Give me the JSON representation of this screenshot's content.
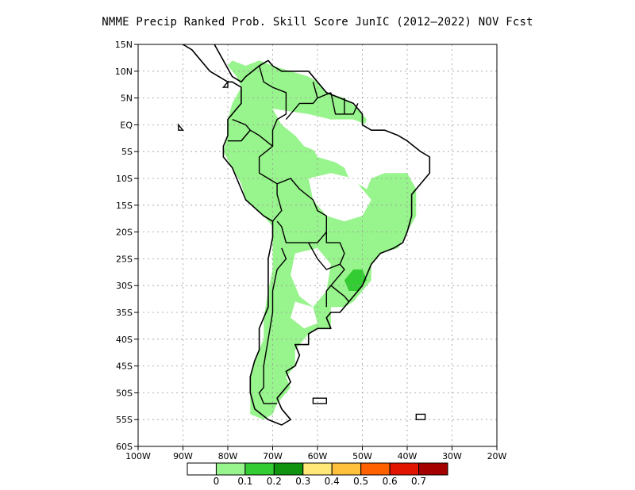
{
  "title": "NMME Precip Ranked Prob. Skill Score JunIC (2012–2022) NOV Fcst",
  "map": {
    "lon_range": [
      -100,
      -20
    ],
    "lat_range": [
      -60,
      15
    ],
    "lat_ticks": [
      {
        "value": 15,
        "label": "15N"
      },
      {
        "value": 10,
        "label": "10N"
      },
      {
        "value": 5,
        "label": "5N"
      },
      {
        "value": 0,
        "label": "EQ"
      },
      {
        "value": -5,
        "label": "5S"
      },
      {
        "value": -10,
        "label": "10S"
      },
      {
        "value": -15,
        "label": "15S"
      },
      {
        "value": -20,
        "label": "20S"
      },
      {
        "value": -25,
        "label": "25S"
      },
      {
        "value": -30,
        "label": "30S"
      },
      {
        "value": -35,
        "label": "35S"
      },
      {
        "value": -40,
        "label": "40S"
      },
      {
        "value": -45,
        "label": "45S"
      },
      {
        "value": -50,
        "label": "50S"
      },
      {
        "value": -55,
        "label": "55S"
      },
      {
        "value": -60,
        "label": "60S"
      }
    ],
    "lon_ticks": [
      {
        "value": -100,
        "label": "100W"
      },
      {
        "value": -90,
        "label": "90W"
      },
      {
        "value": -80,
        "label": "80W"
      },
      {
        "value": -70,
        "label": "70W"
      },
      {
        "value": -60,
        "label": "60W"
      },
      {
        "value": -50,
        "label": "50W"
      },
      {
        "value": -40,
        "label": "40W"
      },
      {
        "value": -30,
        "label": "30W"
      },
      {
        "value": -20,
        "label": "20W"
      }
    ],
    "grid": true,
    "land_outline_color": "#000000",
    "skill_regions": [
      {
        "level": "0.1-0.2",
        "color": "#98f48c",
        "coords": [
          [
            -79,
            12
          ],
          [
            -76,
            11
          ],
          [
            -73,
            12
          ],
          [
            -70,
            11
          ],
          [
            -66,
            10
          ],
          [
            -62,
            9
          ],
          [
            -60,
            8
          ],
          [
            -58,
            6
          ],
          [
            -54,
            5
          ],
          [
            -51,
            3
          ],
          [
            -49,
            1
          ],
          [
            -50,
            -1
          ],
          [
            -56,
            -1
          ],
          [
            -60,
            -2
          ],
          [
            -62,
            -3
          ],
          [
            -60,
            -6
          ],
          [
            -56,
            -7
          ],
          [
            -54,
            -8
          ],
          [
            -53,
            -10
          ],
          [
            -49,
            -12
          ],
          [
            -48,
            -10
          ],
          [
            -45,
            -9
          ],
          [
            -43,
            -9
          ],
          [
            -40,
            -9
          ],
          [
            -38,
            -12
          ],
          [
            -38,
            -17
          ],
          [
            -40,
            -20
          ],
          [
            -42,
            -23
          ],
          [
            -46,
            -24
          ],
          [
            -48,
            -26
          ],
          [
            -48,
            -29
          ],
          [
            -50,
            -31
          ],
          [
            -52,
            -33
          ],
          [
            -54,
            -34
          ],
          [
            -57,
            -34
          ],
          [
            -57,
            -36
          ],
          [
            -57,
            -38
          ],
          [
            -60,
            -38
          ],
          [
            -62,
            -39
          ],
          [
            -64,
            -41
          ],
          [
            -65,
            -42
          ],
          [
            -65,
            -45
          ],
          [
            -67,
            -47
          ],
          [
            -66,
            -49
          ],
          [
            -68,
            -51
          ],
          [
            -69,
            -52
          ],
          [
            -70,
            -54
          ],
          [
            -72,
            -55
          ],
          [
            -75,
            -54
          ],
          [
            -75,
            -50
          ],
          [
            -75,
            -47
          ],
          [
            -74,
            -44
          ],
          [
            -73,
            -42
          ],
          [
            -72,
            -40
          ],
          [
            -72,
            -36
          ],
          [
            -71,
            -31
          ],
          [
            -70,
            -27
          ],
          [
            -70,
            -23
          ],
          [
            -70,
            -19
          ],
          [
            -72,
            -17
          ],
          [
            -76,
            -14
          ],
          [
            -77,
            -11
          ],
          [
            -79,
            -8
          ],
          [
            -81,
            -5
          ],
          [
            -80,
            -2
          ],
          [
            -80,
            1
          ],
          [
            -79,
            4
          ],
          [
            -77,
            7
          ],
          [
            -78,
            9
          ],
          [
            -80,
            11
          ]
        ]
      },
      {
        "level": "0.2-0.3",
        "color": "#33cc33",
        "coords": [
          [
            -52,
            -27
          ],
          [
            -50,
            -27
          ],
          [
            -49,
            -29
          ],
          [
            -51,
            -31
          ],
          [
            -53,
            -31
          ],
          [
            -54,
            -29
          ]
        ]
      }
    ],
    "no_skill_regions": [
      [
        [
          -70,
          3
        ],
        [
          -62,
          2
        ],
        [
          -57,
          1
        ],
        [
          -52,
          1
        ],
        [
          -49,
          0
        ],
        [
          -45,
          -1
        ],
        [
          -42,
          -3
        ],
        [
          -40,
          -4
        ],
        [
          -41,
          -6
        ],
        [
          -45,
          -6
        ],
        [
          -49,
          -7
        ],
        [
          -53,
          -7
        ],
        [
          -57,
          -6
        ],
        [
          -60,
          -5
        ],
        [
          -63,
          -4
        ],
        [
          -65,
          -2
        ],
        [
          -68,
          0
        ]
      ],
      [
        [
          -62,
          -10
        ],
        [
          -57,
          -9
        ],
        [
          -52,
          -10
        ],
        [
          -48,
          -14
        ],
        [
          -50,
          -17
        ],
        [
          -54,
          -18
        ],
        [
          -58,
          -17
        ],
        [
          -61,
          -14
        ]
      ],
      [
        [
          -65,
          -24
        ],
        [
          -60,
          -23
        ],
        [
          -57,
          -26
        ],
        [
          -58,
          -31
        ],
        [
          -61,
          -34
        ],
        [
          -64,
          -32
        ],
        [
          -66,
          -28
        ]
      ],
      [
        [
          -65,
          -33
        ],
        [
          -61,
          -34
        ],
        [
          -60,
          -37
        ],
        [
          -63,
          -38
        ],
        [
          -66,
          -36
        ]
      ]
    ],
    "coastline": [
      [
        -83,
        15
      ],
      [
        -81,
        12
      ],
      [
        -79,
        9
      ],
      [
        -77,
        8
      ],
      [
        -76,
        9
      ],
      [
        -73,
        11
      ],
      [
        -71,
        12
      ],
      [
        -70,
        11
      ],
      [
        -68,
        10
      ],
      [
        -65,
        10
      ],
      [
        -62,
        10
      ],
      [
        -60,
        8
      ],
      [
        -58,
        6
      ],
      [
        -55,
        5
      ],
      [
        -52,
        4
      ],
      [
        -50,
        2
      ],
      [
        -50,
        0
      ],
      [
        -48,
        -1
      ],
      [
        -45,
        -1
      ],
      [
        -42,
        -2
      ],
      [
        -40,
        -3
      ],
      [
        -37,
        -5
      ],
      [
        -35,
        -6
      ],
      [
        -35,
        -9
      ],
      [
        -37,
        -11
      ],
      [
        -39,
        -13
      ],
      [
        -39,
        -17
      ],
      [
        -40,
        -20
      ],
      [
        -41,
        -22
      ],
      [
        -43,
        -23
      ],
      [
        -46,
        -24
      ],
      [
        -48,
        -26
      ],
      [
        -49,
        -28
      ],
      [
        -50,
        -30
      ],
      [
        -51,
        -31
      ],
      [
        -53,
        -33
      ],
      [
        -55,
        -35
      ],
      [
        -57,
        -35
      ],
      [
        -58,
        -36
      ],
      [
        -57,
        -38
      ],
      [
        -60,
        -38
      ],
      [
        -62,
        -39
      ],
      [
        -62,
        -41
      ],
      [
        -65,
        -41
      ],
      [
        -64,
        -43
      ],
      [
        -65,
        -45
      ],
      [
        -67,
        -46
      ],
      [
        -66,
        -48
      ],
      [
        -68,
        -50
      ],
      [
        -69,
        -51
      ],
      [
        -68,
        -53
      ],
      [
        -66,
        -55
      ],
      [
        -68,
        -56
      ],
      [
        -71,
        -55
      ],
      [
        -74,
        -53
      ],
      [
        -75,
        -50
      ],
      [
        -75,
        -47
      ],
      [
        -74,
        -44
      ],
      [
        -73,
        -42
      ],
      [
        -73,
        -38
      ],
      [
        -71,
        -34
      ],
      [
        -71,
        -30
      ],
      [
        -71,
        -25
      ],
      [
        -70,
        -21
      ],
      [
        -70,
        -18
      ],
      [
        -72,
        -17
      ],
      [
        -76,
        -14
      ],
      [
        -77,
        -12
      ],
      [
        -79,
        -8
      ],
      [
        -81,
        -6
      ],
      [
        -81,
        -4
      ],
      [
        -80,
        -2
      ],
      [
        -80,
        1
      ],
      [
        -79,
        2
      ],
      [
        -77,
        4
      ],
      [
        -77,
        7
      ],
      [
        -79,
        8
      ],
      [
        -80,
        8
      ],
      [
        -82,
        9
      ],
      [
        -84,
        10
      ],
      [
        -86,
        12
      ],
      [
        -88,
        14
      ],
      [
        -90,
        15
      ]
    ],
    "borders": [
      [
        [
          -73,
          11
        ],
        [
          -72,
          8
        ],
        [
          -70,
          7
        ],
        [
          -67,
          6
        ],
        [
          -67,
          2
        ],
        [
          -69,
          1
        ],
        [
          -70,
          -1
        ],
        [
          -70,
          -4
        ]
      ],
      [
        [
          -67,
          1
        ],
        [
          -64,
          4
        ],
        [
          -61,
          4
        ],
        [
          -60,
          5
        ],
        [
          -61,
          8
        ]
      ],
      [
        [
          -60,
          5
        ],
        [
          -57,
          6
        ]
      ],
      [
        [
          -57,
          6
        ],
        [
          -56,
          2
        ],
        [
          -54,
          2
        ],
        [
          -54,
          5
        ]
      ],
      [
        [
          -54,
          2
        ],
        [
          -52,
          2
        ],
        [
          -51,
          4
        ]
      ],
      [
        [
          -79,
          1
        ],
        [
          -76,
          0
        ],
        [
          -75,
          -1
        ],
        [
          -77,
          -3
        ]
      ],
      [
        [
          -80,
          -3
        ],
        [
          -77,
          -3
        ],
        [
          -75,
          -1
        ],
        [
          -73,
          -2
        ],
        [
          -70,
          -4
        ],
        [
          -73,
          -6
        ],
        [
          -73,
          -9
        ],
        [
          -71,
          -10
        ],
        [
          -69,
          -11
        ],
        [
          -69,
          -13
        ],
        [
          -68,
          -16
        ],
        [
          -70,
          -18
        ]
      ],
      [
        [
          -69,
          -11
        ],
        [
          -66,
          -10
        ],
        [
          -64,
          -12
        ],
        [
          -61,
          -14
        ],
        [
          -60,
          -16
        ],
        [
          -58,
          -17
        ],
        [
          -58,
          -20
        ],
        [
          -60,
          -22
        ],
        [
          -62,
          -22
        ],
        [
          -64,
          -22
        ],
        [
          -67,
          -22
        ],
        [
          -68,
          -19
        ],
        [
          -69,
          -18
        ]
      ],
      [
        [
          -68,
          -23
        ],
        [
          -67,
          -25
        ],
        [
          -69,
          -27
        ],
        [
          -70,
          -31
        ],
        [
          -70,
          -35
        ],
        [
          -71,
          -40
        ],
        [
          -72,
          -45
        ],
        [
          -72,
          -49
        ],
        [
          -73,
          -50
        ],
        [
          -72,
          -52
        ],
        [
          -69,
          -52
        ]
      ],
      [
        [
          -58,
          -20
        ],
        [
          -58,
          -22
        ],
        [
          -55,
          -22
        ],
        [
          -54,
          -24
        ],
        [
          -55,
          -26
        ],
        [
          -58,
          -27
        ],
        [
          -60,
          -25
        ],
        [
          -62,
          -22
        ]
      ],
      [
        [
          -55,
          -26
        ],
        [
          -54,
          -27
        ],
        [
          -57,
          -30
        ],
        [
          -58,
          -31
        ],
        [
          -58,
          -34
        ]
      ],
      [
        [
          -57,
          -30
        ],
        [
          -54,
          -32
        ],
        [
          -53,
          -33
        ]
      ]
    ],
    "islands": [
      [
        [
          -61,
          -51
        ],
        [
          -58,
          -51
        ],
        [
          -58,
          -52
        ],
        [
          -61,
          -52
        ]
      ],
      [
        [
          -38,
          -54
        ],
        [
          -36,
          -54
        ],
        [
          -36,
          -55
        ],
        [
          -38,
          -55
        ]
      ],
      [
        [
          -91,
          0
        ],
        [
          -90,
          -1
        ],
        [
          -91,
          -1
        ]
      ],
      [
        [
          -81,
          7
        ],
        [
          -80,
          7
        ],
        [
          -80,
          8
        ]
      ]
    ]
  },
  "colorbar": {
    "colors": [
      "#ffffff",
      "#98f48c",
      "#33cc33",
      "#109410",
      "#ffe878",
      "#ffc03c",
      "#ff6000",
      "#e11400",
      "#a50000"
    ],
    "labels": [
      "0",
      "0.1",
      "0.2",
      "0.3",
      "0.4",
      "0.5",
      "0.6",
      "0.7"
    ]
  }
}
